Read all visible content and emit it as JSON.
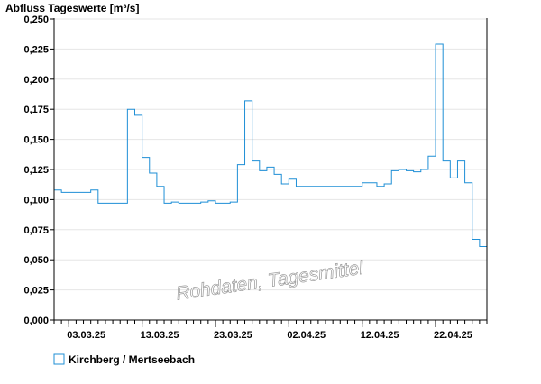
{
  "chart_data": {
    "type": "line",
    "title": "Abfluss Tageswerte [m³/s]",
    "watermark": "Rohdaten, Tagesmittel",
    "ylim": [
      0,
      0.25
    ],
    "ytick_values": [
      0,
      0.025,
      0.05,
      0.075,
      0.1,
      0.125,
      0.15,
      0.175,
      0.2,
      0.225,
      0.25
    ],
    "ytick_labels": [
      "0,000",
      "0,025",
      "0,050",
      "0,075",
      "0,100",
      "0,125",
      "0,150",
      "0,175",
      "0,200",
      "0,225",
      "0,250"
    ],
    "xtick_labels": [
      "03.03.25",
      "13.03.25",
      "23.03.25",
      "02.04.25",
      "12.04.25",
      "22.04.25"
    ],
    "xlim": [
      "2025-03-01",
      "2025-04-28"
    ],
    "grid": true,
    "legend": "bottom-left",
    "step": true,
    "series": [
      {
        "name": "Kirchberg / Mertseebach",
        "color": "#1f8fd6",
        "x": [
          "2025-03-01",
          "2025-03-02",
          "2025-03-03",
          "2025-03-04",
          "2025-03-05",
          "2025-03-06",
          "2025-03-07",
          "2025-03-08",
          "2025-03-09",
          "2025-03-10",
          "2025-03-11",
          "2025-03-12",
          "2025-03-13",
          "2025-03-14",
          "2025-03-15",
          "2025-03-16",
          "2025-03-17",
          "2025-03-18",
          "2025-03-19",
          "2025-03-20",
          "2025-03-21",
          "2025-03-22",
          "2025-03-23",
          "2025-03-24",
          "2025-03-25",
          "2025-03-26",
          "2025-03-27",
          "2025-03-28",
          "2025-03-29",
          "2025-03-30",
          "2025-03-31",
          "2025-04-01",
          "2025-04-02",
          "2025-04-03",
          "2025-04-04",
          "2025-04-05",
          "2025-04-06",
          "2025-04-07",
          "2025-04-08",
          "2025-04-09",
          "2025-04-10",
          "2025-04-11",
          "2025-04-12",
          "2025-04-13",
          "2025-04-14",
          "2025-04-15",
          "2025-04-16",
          "2025-04-17",
          "2025-04-18",
          "2025-04-19",
          "2025-04-20",
          "2025-04-21",
          "2025-04-22",
          "2025-04-23",
          "2025-04-24",
          "2025-04-25",
          "2025-04-26",
          "2025-04-27",
          "2025-04-28"
        ],
        "y": [
          0.108,
          0.106,
          0.106,
          0.106,
          0.106,
          0.108,
          0.097,
          0.097,
          0.097,
          0.097,
          0.175,
          0.17,
          0.135,
          0.122,
          0.111,
          0.097,
          0.098,
          0.097,
          0.097,
          0.097,
          0.098,
          0.099,
          0.097,
          0.097,
          0.098,
          0.129,
          0.182,
          0.132,
          0.124,
          0.127,
          0.121,
          0.113,
          0.117,
          0.111,
          0.111,
          0.111,
          0.111,
          0.111,
          0.111,
          0.111,
          0.111,
          0.111,
          0.114,
          0.114,
          0.111,
          0.113,
          0.124,
          0.125,
          0.124,
          0.123,
          0.125,
          0.136,
          0.229,
          0.132,
          0.118,
          0.132,
          0.114,
          0.067,
          0.061
        ]
      }
    ]
  }
}
